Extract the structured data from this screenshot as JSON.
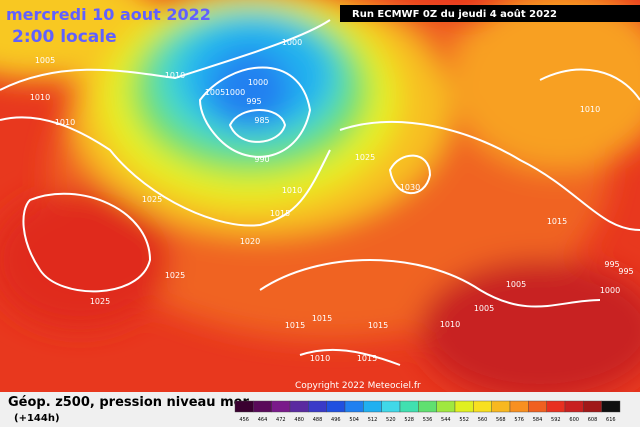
{
  "header": {
    "date": "mercredi 10 aout 2022",
    "time": "2:00 locale",
    "run": "Run ECMWF 0Z du jeudi 4 août 2022"
  },
  "footer": {
    "title": "Géop. z500, pression niveau mer",
    "lead": "(+144h)",
    "copyright": "Copyright 2022 Meteociel.fr"
  },
  "isobar_labels": [
    "1005",
    "1010",
    "1010",
    "1010",
    "1000",
    "1005",
    "1000",
    "995",
    "985",
    "990",
    "1000",
    "1025",
    "1030",
    "1010",
    "1015",
    "1025",
    "1020",
    "1025",
    "1025",
    "1015",
    "1010",
    "995",
    "995",
    "1005",
    "1005",
    "1000",
    "1015",
    "1015",
    "1015",
    "1015",
    "1010",
    "1010"
  ],
  "scale": [
    {
      "value": 456,
      "color": "#3a0030"
    },
    {
      "value": 464,
      "color": "#5a0a5a"
    },
    {
      "value": 472,
      "color": "#7a1a8a"
    },
    {
      "value": 480,
      "color": "#5a2aa0"
    },
    {
      "value": 488,
      "color": "#3a3ac8"
    },
    {
      "value": 496,
      "color": "#2050e0"
    },
    {
      "value": 504,
      "color": "#2080f0"
    },
    {
      "value": 512,
      "color": "#20b0f0"
    },
    {
      "value": 520,
      "color": "#40d8e8"
    },
    {
      "value": 528,
      "color": "#40e0b0"
    },
    {
      "value": 536,
      "color": "#60e070"
    },
    {
      "value": 544,
      "color": "#a0e840"
    },
    {
      "value": 552,
      "color": "#e0f020"
    },
    {
      "value": 560,
      "color": "#f8e020"
    },
    {
      "value": 568,
      "color": "#f8b820"
    },
    {
      "value": 576,
      "color": "#f89020"
    },
    {
      "value": 584,
      "color": "#f06020"
    },
    {
      "value": 592,
      "color": "#e83020"
    },
    {
      "value": 600,
      "color": "#c82020"
    },
    {
      "value": 608,
      "color": "#a01818"
    },
    {
      "value": 616,
      "color": "#101010"
    }
  ]
}
